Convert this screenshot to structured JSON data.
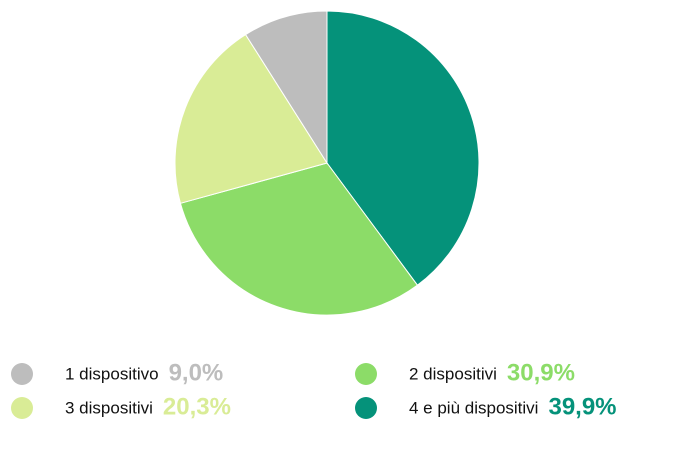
{
  "chart_data": {
    "type": "pie",
    "series": [
      {
        "name": "1 dispositivo",
        "color": "#bdbdbd",
        "values": [
          9.0
        ],
        "value_labels": [
          "9,0%"
        ]
      },
      {
        "name": "2 dispositivi",
        "color": "#8cdc68",
        "values": [
          30.9
        ],
        "value_labels": [
          "30,9%"
        ]
      },
      {
        "name": "3 dispositivi",
        "color": "#d9ec96",
        "values": [
          20.3
        ],
        "value_labels": [
          "20,3%"
        ]
      },
      {
        "name": "4 e più dispositivi",
        "color": "#05927a",
        "values": [
          39.9
        ],
        "value_labels": [
          "39,9%"
        ]
      }
    ]
  }
}
